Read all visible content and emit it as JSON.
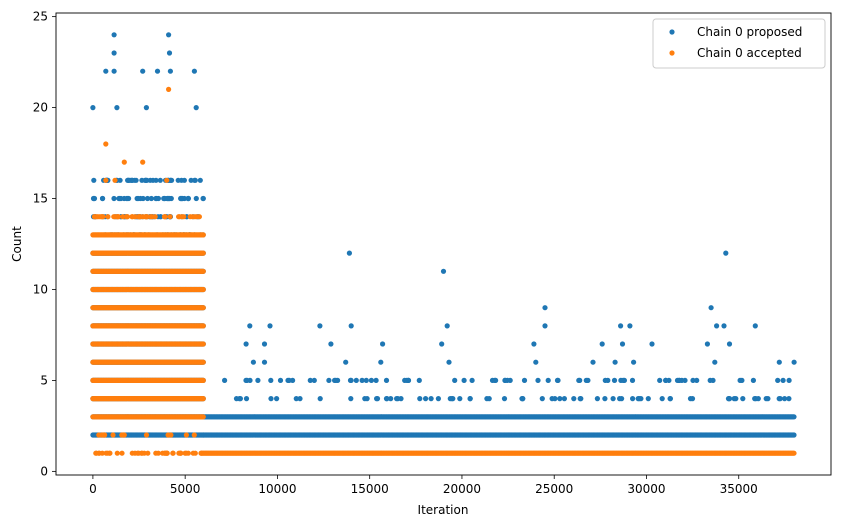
{
  "chart_data": {
    "type": "scatter",
    "title": "",
    "xlabel": "Iteration",
    "ylabel": "Count",
    "xlim": [
      -2000,
      40000
    ],
    "ylim": [
      -0.2,
      25.2
    ],
    "xticks": [
      0,
      5000,
      10000,
      15000,
      20000,
      25000,
      30000,
      35000
    ],
    "yticks": [
      0,
      5,
      10,
      15,
      20,
      25
    ],
    "xtick_labels": [
      "0",
      "5000",
      "10000",
      "15000",
      "20000",
      "25000",
      "30000",
      "35000"
    ],
    "ytick_labels": [
      "0",
      "5",
      "10",
      "15",
      "20",
      "25"
    ],
    "legend_position": "top-right",
    "series": [
      {
        "name": "Chain 0 proposed",
        "color": "#1f77b4",
        "marker": "circle",
        "segments": [
          {
            "x_start": 0,
            "x_end": 6000,
            "y_min": 2,
            "y_max": 12,
            "density": "dense"
          },
          {
            "x_start": 0,
            "x_end": 6000,
            "y_min": 13,
            "y_max": 16,
            "density": "medium"
          },
          {
            "x_start": 6000,
            "x_end": 38000,
            "y_min": 2,
            "y_max": 2,
            "density": "dense"
          },
          {
            "x_start": 6000,
            "x_end": 38000,
            "y_min": 3,
            "y_max": 3,
            "density": "dense"
          },
          {
            "x_start": 7000,
            "x_end": 38000,
            "y_min": 4,
            "y_max": 5,
            "density": "sparse"
          }
        ],
        "points": [
          [
            1150,
            24
          ],
          [
            4100,
            24
          ],
          [
            1150,
            23
          ],
          [
            4150,
            23
          ],
          [
            700,
            22
          ],
          [
            1150,
            22
          ],
          [
            2700,
            22
          ],
          [
            3500,
            22
          ],
          [
            4200,
            22
          ],
          [
            5500,
            22
          ],
          [
            0,
            20
          ],
          [
            1300,
            20
          ],
          [
            2900,
            20
          ],
          [
            5600,
            20
          ],
          [
            13900,
            12
          ],
          [
            34300,
            12
          ],
          [
            19000,
            11
          ],
          [
            24500,
            9
          ],
          [
            33500,
            9
          ],
          [
            8500,
            8
          ],
          [
            9600,
            8
          ],
          [
            12300,
            8
          ],
          [
            14000,
            8
          ],
          [
            19200,
            8
          ],
          [
            24500,
            8
          ],
          [
            28600,
            8
          ],
          [
            29100,
            8
          ],
          [
            33800,
            8
          ],
          [
            34200,
            8
          ],
          [
            35900,
            8
          ],
          [
            8300,
            7
          ],
          [
            9300,
            7
          ],
          [
            12900,
            7
          ],
          [
            15700,
            7
          ],
          [
            18900,
            7
          ],
          [
            23900,
            7
          ],
          [
            27600,
            7
          ],
          [
            28700,
            7
          ],
          [
            30300,
            7
          ],
          [
            33300,
            7
          ],
          [
            34500,
            7
          ],
          [
            8700,
            6
          ],
          [
            9300,
            6
          ],
          [
            13700,
            6
          ],
          [
            15600,
            6
          ],
          [
            19300,
            6
          ],
          [
            24000,
            6
          ],
          [
            27100,
            6
          ],
          [
            28300,
            6
          ],
          [
            29300,
            6
          ],
          [
            33700,
            6
          ],
          [
            37200,
            6
          ],
          [
            38000,
            6
          ]
        ]
      },
      {
        "name": "Chain 0 accepted",
        "color": "#ff7f0e",
        "marker": "circle",
        "segments": [
          {
            "x_start": 0,
            "x_end": 6000,
            "y_min": 1,
            "y_max": 1,
            "density": "medium"
          },
          {
            "x_start": 0,
            "x_end": 6000,
            "y_min": 2,
            "y_max": 2,
            "density": "sparse"
          },
          {
            "x_start": 0,
            "x_end": 6000,
            "y_min": 3,
            "y_max": 13,
            "density": "dense"
          },
          {
            "x_start": 0,
            "x_end": 6000,
            "y_min": 14,
            "y_max": 14,
            "density": "medium"
          },
          {
            "x_start": 6000,
            "x_end": 38000,
            "y_min": 1,
            "y_max": 1,
            "density": "dense"
          }
        ],
        "points": [
          [
            4100,
            21
          ],
          [
            700,
            18
          ],
          [
            1700,
            17
          ],
          [
            2700,
            17
          ],
          [
            4000,
            16
          ],
          [
            700,
            16
          ],
          [
            1200,
            16
          ]
        ]
      }
    ]
  }
}
